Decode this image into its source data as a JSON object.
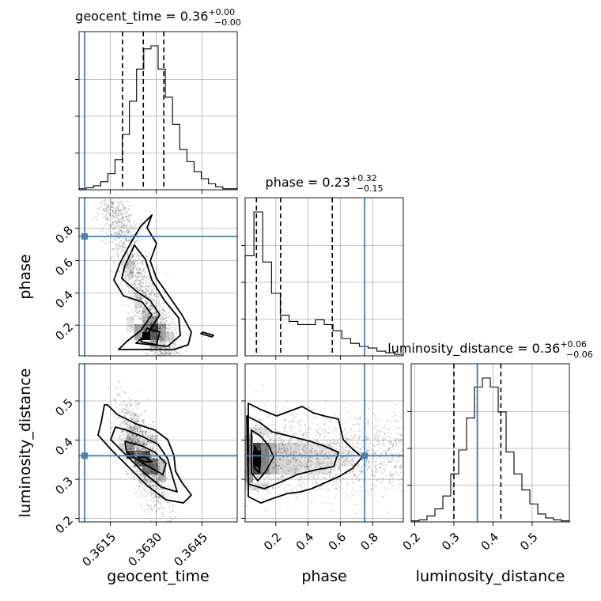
{
  "chart_data": {
    "type": "corner",
    "parameters": [
      "geocent_time",
      "phase",
      "luminosity_distance"
    ],
    "titles": {
      "geocent_time": {
        "name": "geocent_time",
        "value": "0.36",
        "upper": "+0.00",
        "lower": "−0.00"
      },
      "phase": {
        "name": "phase",
        "value": "0.23",
        "upper": "+0.32",
        "lower": "−0.15"
      },
      "luminosity_distance": {
        "name": "luminosity_distance",
        "value": "0.36",
        "upper": "+0.06",
        "lower": "−0.06"
      }
    },
    "axis_labels": {
      "geocent_time": "geocent_time",
      "phase": "phase",
      "luminosity_distance": "luminosity_distance"
    },
    "ranges": {
      "geocent_time": [
        0.36048,
        0.36565
      ],
      "phase": [
        0.01,
        0.99
      ],
      "luminosity_distance": [
        0.191,
        0.595
      ]
    },
    "ticks": {
      "geocent_time": {
        "values": [
          0.3615,
          0.363,
          0.3645
        ],
        "labels": [
          "0.3615",
          "0.3630",
          "0.3645"
        ]
      },
      "phase": {
        "values": [
          0.2,
          0.4,
          0.6,
          0.8
        ],
        "labels": [
          "0.2",
          "0.4",
          "0.6",
          "0.8"
        ]
      },
      "luminosity_distance": {
        "values": [
          0.2,
          0.3,
          0.4,
          0.5
        ],
        "labels": [
          "0.2",
          "0.3",
          "0.4",
          "0.5"
        ]
      }
    },
    "injection": {
      "geocent_time": 0.36066,
      "phase": 0.75,
      "luminosity_distance": 0.36
    },
    "quantiles": {
      "geocent_time": [
        0.3619,
        0.36258,
        0.36325
      ],
      "phase": [
        0.08,
        0.23,
        0.55
      ],
      "luminosity_distance": [
        0.3,
        0.36,
        0.42
      ]
    },
    "hist_1d": {
      "geocent_time": [
        1,
        2,
        4,
        8,
        16,
        30,
        55,
        88,
        120,
        140,
        143,
        120,
        92,
        65,
        40,
        28,
        18,
        11,
        6,
        3,
        1,
        1
      ],
      "phase": [
        64,
        92,
        60,
        40,
        26,
        22,
        20,
        20,
        23,
        20,
        16,
        11,
        8,
        6,
        5,
        3,
        2,
        1
      ],
      "luminosity_distance": [
        1,
        2,
        6,
        13,
        26,
        48,
        72,
        104,
        135,
        144,
        135,
        110,
        70,
        48,
        32,
        18,
        8,
        4,
        2,
        1
      ]
    },
    "grid": true,
    "injection_color": "#4682b4",
    "hist_color": "#000000",
    "density_color": "#000000"
  }
}
